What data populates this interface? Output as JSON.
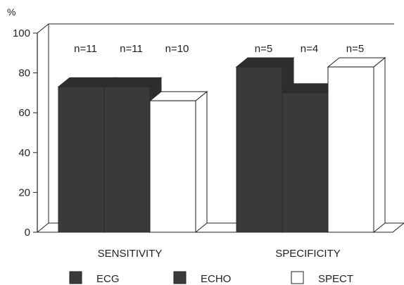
{
  "chart_data": {
    "type": "bar",
    "unit_label": "%",
    "categories": [
      "SENSITIVITY",
      "SPECIFICITY"
    ],
    "series": [
      {
        "name": "ECG",
        "values": [
          73,
          83
        ],
        "n": [
          "n=11",
          "n=5"
        ],
        "color": "#3a3a3a"
      },
      {
        "name": "ECHO",
        "values": [
          73,
          70
        ],
        "n": [
          "n=11",
          "n=4"
        ],
        "color": "#3a3a3a"
      },
      {
        "name": "SPECT",
        "values": [
          66,
          83
        ],
        "n": [
          "n=10",
          "n=5"
        ],
        "color": "#ffffff"
      }
    ],
    "yticks": [
      0,
      20,
      40,
      60,
      80,
      100
    ],
    "ylim": [
      0,
      100
    ],
    "grid": false,
    "legend_position": "bottom",
    "style": "3d-bar"
  }
}
